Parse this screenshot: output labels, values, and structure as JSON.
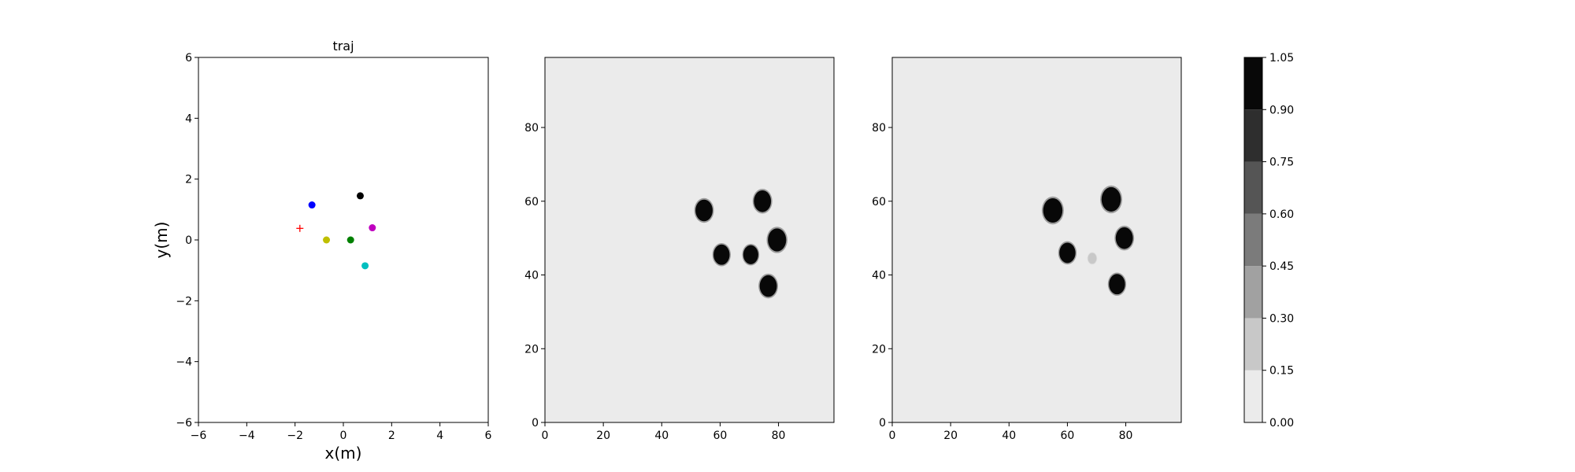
{
  "chart_data": [
    {
      "type": "scatter",
      "title": "traj",
      "xlabel": "x(m)",
      "ylabel": "y(m)",
      "xlim": [
        -6,
        6
      ],
      "ylim": [
        -6,
        6
      ],
      "xticks": [
        "−6",
        "−4",
        "−2",
        "0",
        "2",
        "4",
        "6"
      ],
      "yticks": [
        "−6",
        "−4",
        "−2",
        "0",
        "2",
        "4",
        "6"
      ],
      "grid": false,
      "points": [
        {
          "x": -1.3,
          "y": 1.15,
          "color": "#0000ff",
          "marker": "circle"
        },
        {
          "x": 0.7,
          "y": 1.45,
          "color": "#000000",
          "marker": "circle"
        },
        {
          "x": 1.2,
          "y": 0.4,
          "color": "#bf00bf",
          "marker": "circle"
        },
        {
          "x": -0.7,
          "y": 0.0,
          "color": "#bfbf00",
          "marker": "circle"
        },
        {
          "x": 0.3,
          "y": 0.0,
          "color": "#008000",
          "marker": "circle"
        },
        {
          "x": 0.9,
          "y": -0.85,
          "color": "#00bfbf",
          "marker": "circle"
        },
        {
          "x": -1.8,
          "y": 0.38,
          "color": "#ff0000",
          "marker": "plus"
        }
      ]
    },
    {
      "type": "heatmap",
      "xlim": [
        0,
        99
      ],
      "ylim": [
        0,
        99
      ],
      "xticks": [
        "0",
        "20",
        "40",
        "60",
        "80"
      ],
      "yticks": [
        "0",
        "20",
        "40",
        "60",
        "80"
      ],
      "background_level": 0.05,
      "blobs": [
        {
          "x": 54.5,
          "y": 57.5,
          "r": 3.2,
          "level": 1.0
        },
        {
          "x": 74.5,
          "y": 60,
          "r": 3.2,
          "level": 1.0
        },
        {
          "x": 79.5,
          "y": 49.5,
          "r": 3.4,
          "level": 1.0
        },
        {
          "x": 60.5,
          "y": 45.5,
          "r": 3.0,
          "level": 1.0
        },
        {
          "x": 70.5,
          "y": 45.5,
          "r": 2.8,
          "level": 1.0
        },
        {
          "x": 76.5,
          "y": 37,
          "r": 3.2,
          "level": 1.0
        }
      ]
    },
    {
      "type": "heatmap",
      "xlim": [
        0,
        99
      ],
      "ylim": [
        0,
        99
      ],
      "xticks": [
        "0",
        "20",
        "40",
        "60",
        "80"
      ],
      "yticks": [
        "0",
        "20",
        "40",
        "60",
        "80"
      ],
      "background_level": 0.05,
      "blobs": [
        {
          "x": 55,
          "y": 57.5,
          "r": 3.6,
          "level": 1.0
        },
        {
          "x": 75,
          "y": 60.5,
          "r": 3.6,
          "level": 1.0
        },
        {
          "x": 79.5,
          "y": 50,
          "r": 3.2,
          "level": 1.0
        },
        {
          "x": 60,
          "y": 46,
          "r": 3.0,
          "level": 1.0
        },
        {
          "x": 77,
          "y": 37.5,
          "r": 3.0,
          "level": 1.0
        },
        {
          "x": 68.5,
          "y": 44.5,
          "r": 1.6,
          "level": 0.2
        }
      ]
    }
  ],
  "colorbar": {
    "ticks": [
      "0.00",
      "0.15",
      "0.30",
      "0.45",
      "0.60",
      "0.75",
      "0.90",
      "1.05"
    ],
    "levels": [
      0.0,
      0.15,
      0.3,
      0.45,
      0.6,
      0.75,
      0.9,
      1.05
    ],
    "colors": [
      "#ebebeb",
      "#c8c8c8",
      "#a1a1a1",
      "#7b7b7b",
      "#555555",
      "#2e2e2e",
      "#080808"
    ]
  }
}
